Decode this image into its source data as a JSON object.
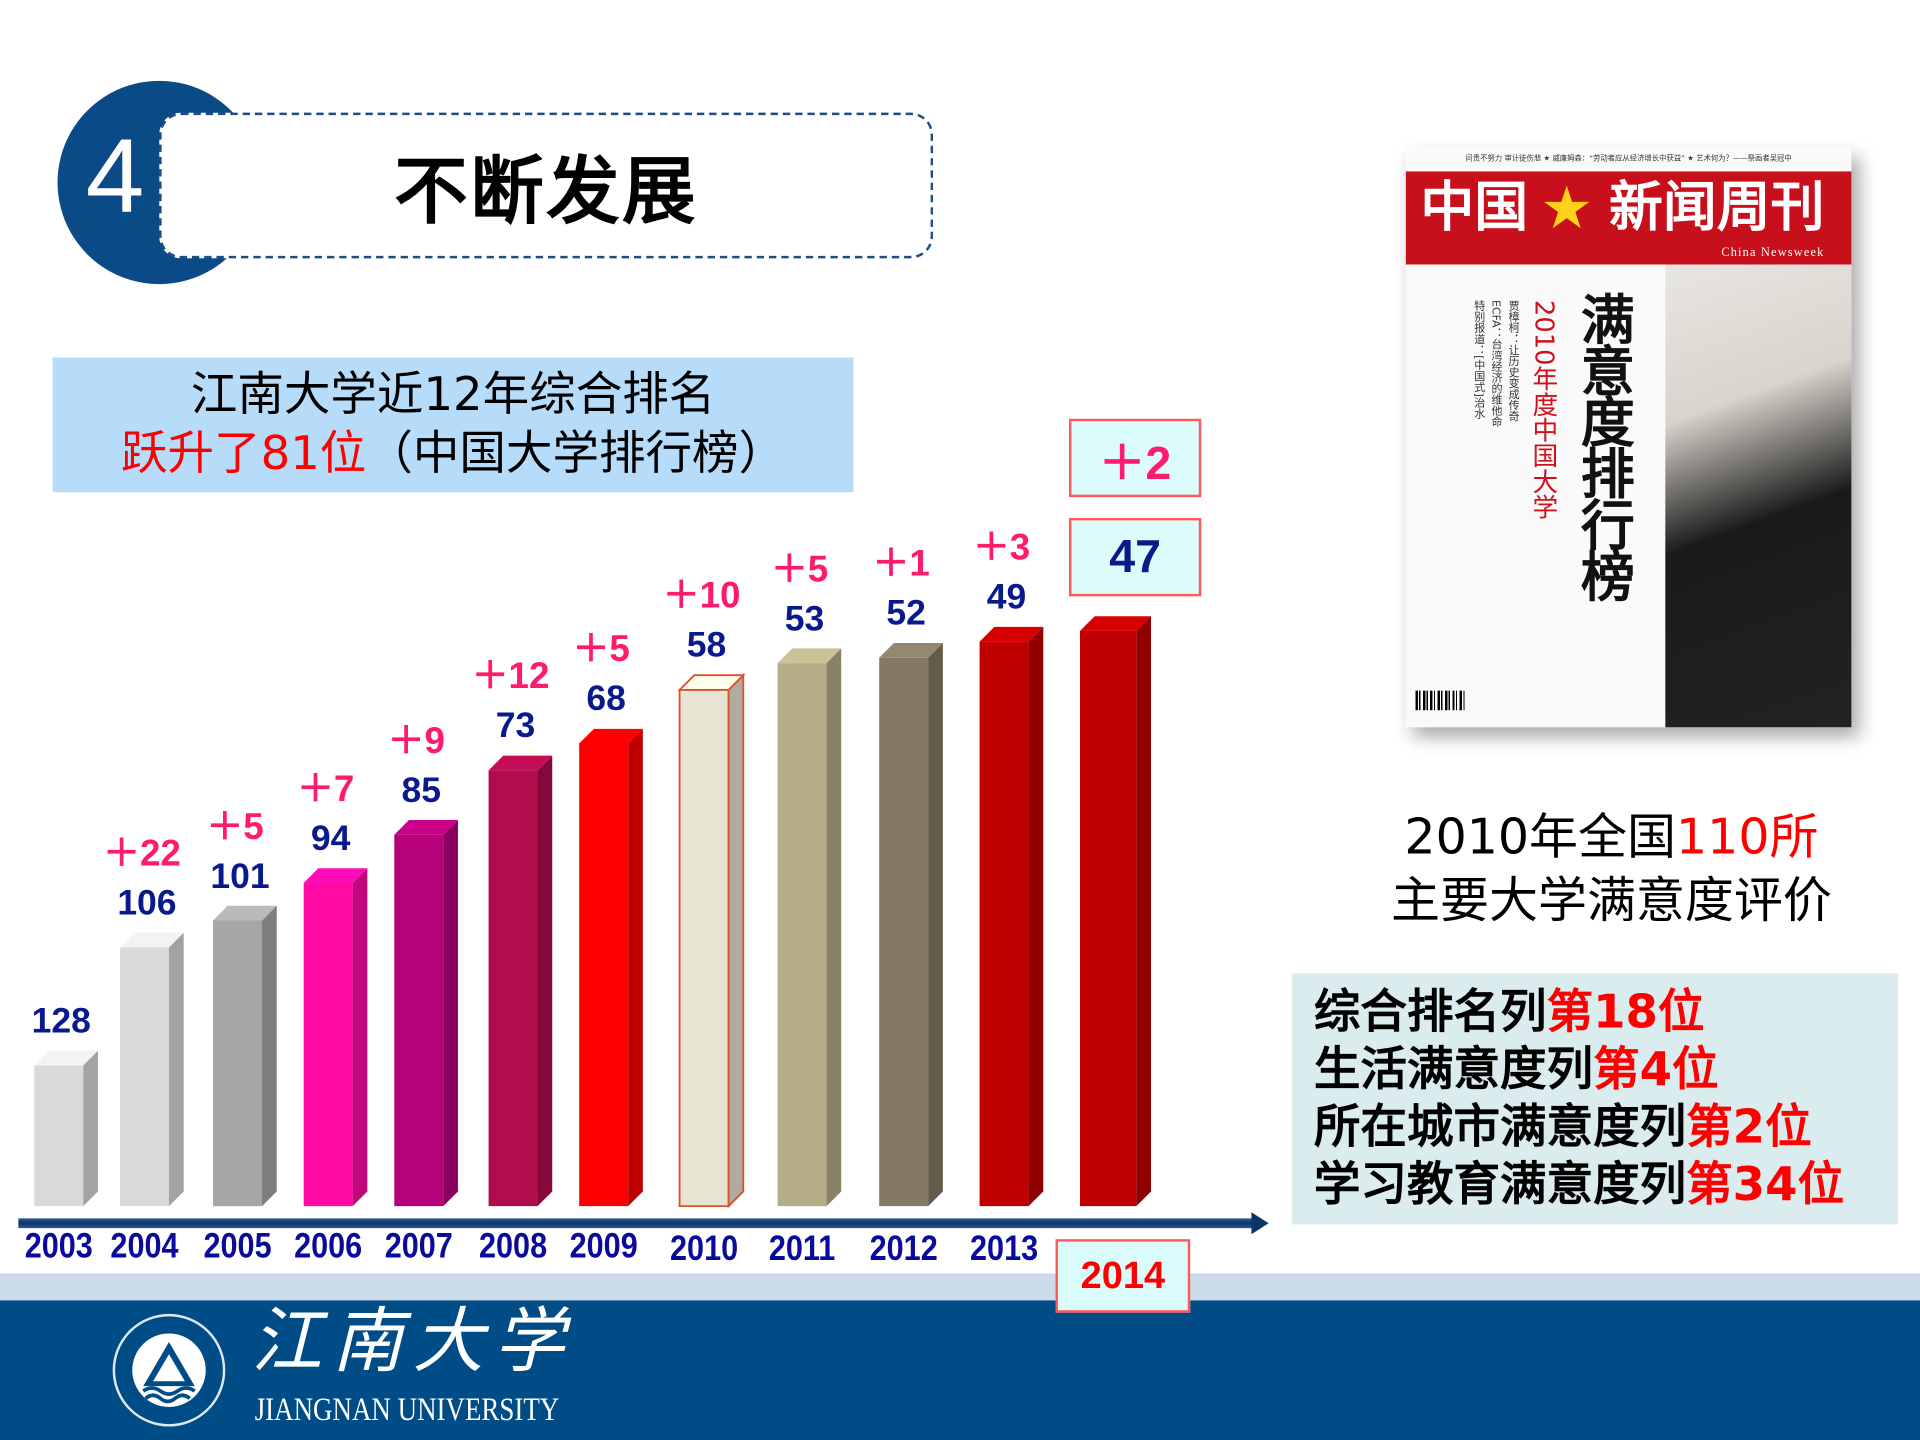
{
  "header": {
    "section_number": "4",
    "title": "不断发展"
  },
  "ranking_summary": {
    "line1": "江南大学近12年综合排名",
    "line2_highlight": "跃升了81位",
    "line2_rest": "（中国大学排行榜）"
  },
  "chart_data": {
    "type": "bar",
    "title": "",
    "categories": [
      "2003",
      "2004",
      "2005",
      "2006",
      "2007",
      "2008",
      "2009",
      "2010",
      "2011",
      "2012",
      "2013",
      "2014"
    ],
    "values": [
      128,
      106,
      101,
      94,
      85,
      73,
      68,
      58,
      53,
      52,
      49,
      47
    ],
    "value_labels": [
      "128",
      "106",
      "101",
      "94",
      "85",
      "73",
      "68",
      "58",
      "53",
      "52",
      "49",
      "47"
    ],
    "change_labels": [
      "",
      "＋22",
      "＋5",
      "＋7",
      "＋9",
      "＋12",
      "＋5",
      "＋10",
      "＋5",
      "＋1",
      "＋3",
      "＋2"
    ],
    "bar_colors": [
      "#d9d9d9",
      "#d9d9d9",
      "#a6a6a6",
      "#ff0aa5",
      "#b5007a",
      "#b00c4c",
      "#ff0000",
      "#e8e4d4",
      "#b5ad88",
      "#847a64",
      "#c00000",
      "#c00000"
    ],
    "highlight_category": "2014",
    "xlabel": "",
    "ylabel": "",
    "grid": false
  },
  "magazine": {
    "masthead": "中国★新闻周刊",
    "masthead_left": "中国",
    "masthead_right": "新闻周刊",
    "english_name": "China Newsweek",
    "top_line": "问责不努力 审计徒伤悲 ★ 威廉姆森：“劳动者应从经济增长中获益” ★ 艺术何为？——祭画者吴冠中",
    "cover_title": "满意度排行榜",
    "cover_subtitle": "2010年度中国大学",
    "side_lines": [
      "贾樟柯：让历史变成传奇",
      "ECFA：台湾经济的维他命",
      "特别报道：[中国式]治水"
    ]
  },
  "caption": {
    "prefix": "2010年全国",
    "highlight": "110所",
    "line2": "主要大学满意度评价"
  },
  "satisfaction": [
    {
      "label": "综合排名列",
      "rank": "第18位"
    },
    {
      "label": "生活满意度列",
      "rank": "第4位"
    },
    {
      "label": "所在城市满意度列",
      "rank": "第2位"
    },
    {
      "label": "学习教育满意度列",
      "rank": "第34位"
    }
  ],
  "footer": {
    "logo_cn": "江南大学",
    "logo_en": "JIANGNAN UNIVERSITY"
  },
  "colors": {
    "brand_blue": "#004c86",
    "accent_red": "#ff0000",
    "value_blue": "#0a1a8c",
    "delta_pink": "#ff1a6e"
  }
}
